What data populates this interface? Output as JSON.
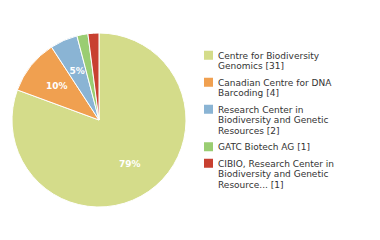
{
  "chart_data": {
    "type": "pie",
    "categories": [
      "Centre for Biodiversity\nGenomics [31]",
      "Canadian Centre for DNA\nBarcoding [4]",
      "Research Center in\nBiodiversity and Genetic\nResources [2]",
      "GATC Biotech AG [1]",
      "CIBIO, Research Center in\nBiodiversity and Genetic\nResource... [1]"
    ],
    "values": [
      79,
      10,
      5,
      2,
      2
    ],
    "value_labels": [
      "79%",
      "10%",
      "5%",
      null,
      null
    ],
    "data_labels": true,
    "colors": [
      "#d4dc8a",
      "#f0a050",
      "#8ab4d4",
      "#9acd72",
      "#c84030"
    ],
    "legend": "right"
  }
}
